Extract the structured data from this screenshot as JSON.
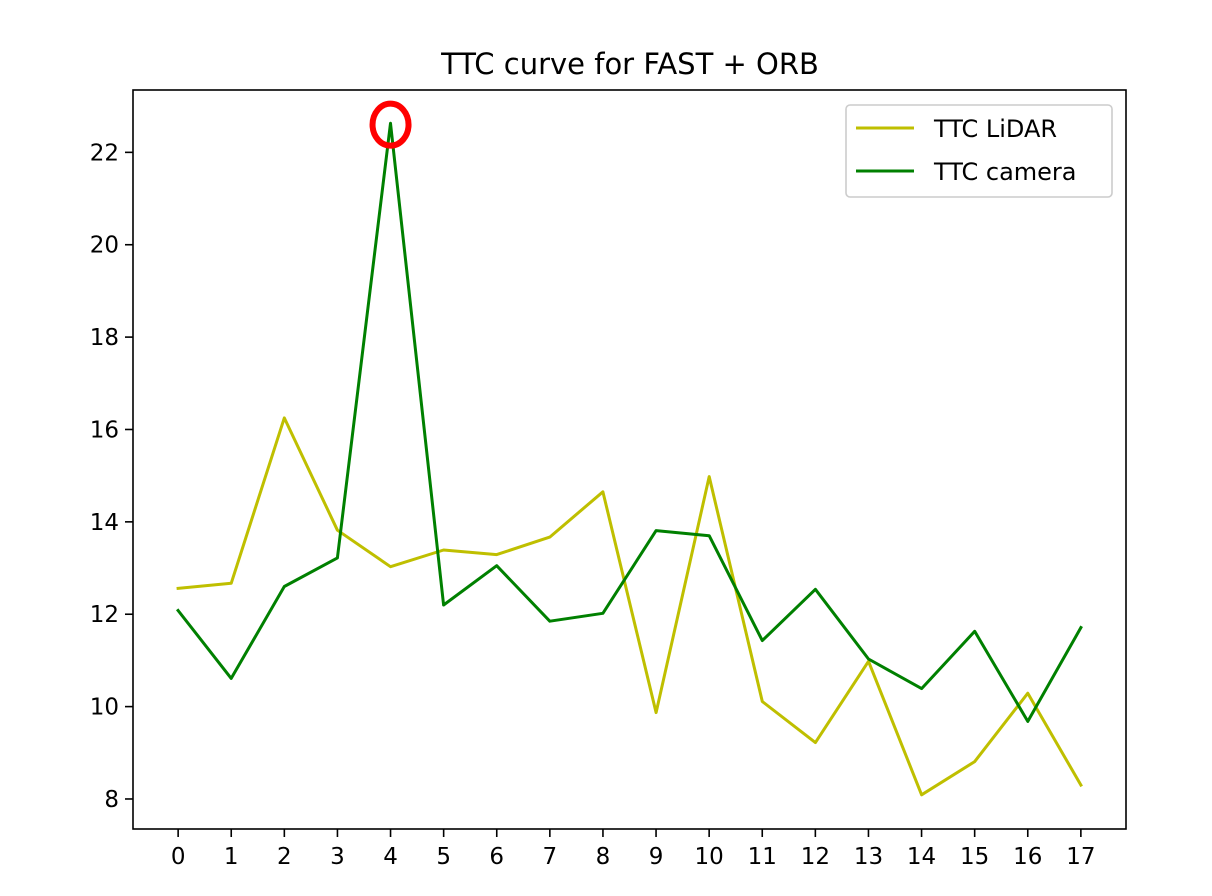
{
  "chart_data": {
    "type": "line",
    "title": "TTC curve for FAST + ORB",
    "xlabel": "",
    "ylabel": "",
    "x": [
      0,
      1,
      2,
      3,
      4,
      5,
      6,
      7,
      8,
      9,
      10,
      11,
      12,
      13,
      14,
      15,
      16,
      17
    ],
    "x_tick_labels": [
      "0",
      "1",
      "2",
      "3",
      "4",
      "5",
      "6",
      "7",
      "8",
      "9",
      "10",
      "11",
      "12",
      "13",
      "14",
      "15",
      "16",
      "17"
    ],
    "y_ticks": [
      8,
      10,
      12,
      14,
      16,
      18,
      20,
      22
    ],
    "y_tick_labels": [
      "8",
      "10",
      "12",
      "14",
      "16",
      "18",
      "20",
      "22"
    ],
    "xlim": [
      -0.85,
      17.85
    ],
    "ylim": [
      7.35,
      23.35
    ],
    "grid": false,
    "legend_position": "upper right",
    "series": [
      {
        "name": "TTC LiDAR",
        "color": "#bfbf00",
        "values": [
          12.56,
          12.67,
          16.25,
          13.82,
          13.03,
          13.39,
          13.29,
          13.67,
          14.65,
          9.87,
          14.98,
          10.11,
          9.22,
          10.98,
          8.09,
          8.81,
          10.29,
          8.3
        ]
      },
      {
        "name": "TTC camera",
        "color": "#008000",
        "values": [
          12.08,
          10.61,
          12.6,
          13.22,
          22.63,
          12.2,
          13.05,
          11.85,
          12.02,
          13.81,
          13.7,
          11.43,
          12.54,
          11.03,
          10.39,
          11.63,
          9.68,
          11.71
        ]
      }
    ],
    "annotations": [
      {
        "type": "circle-marker",
        "color": "#ff0000",
        "x": 4,
        "y": 22.6
      }
    ]
  }
}
